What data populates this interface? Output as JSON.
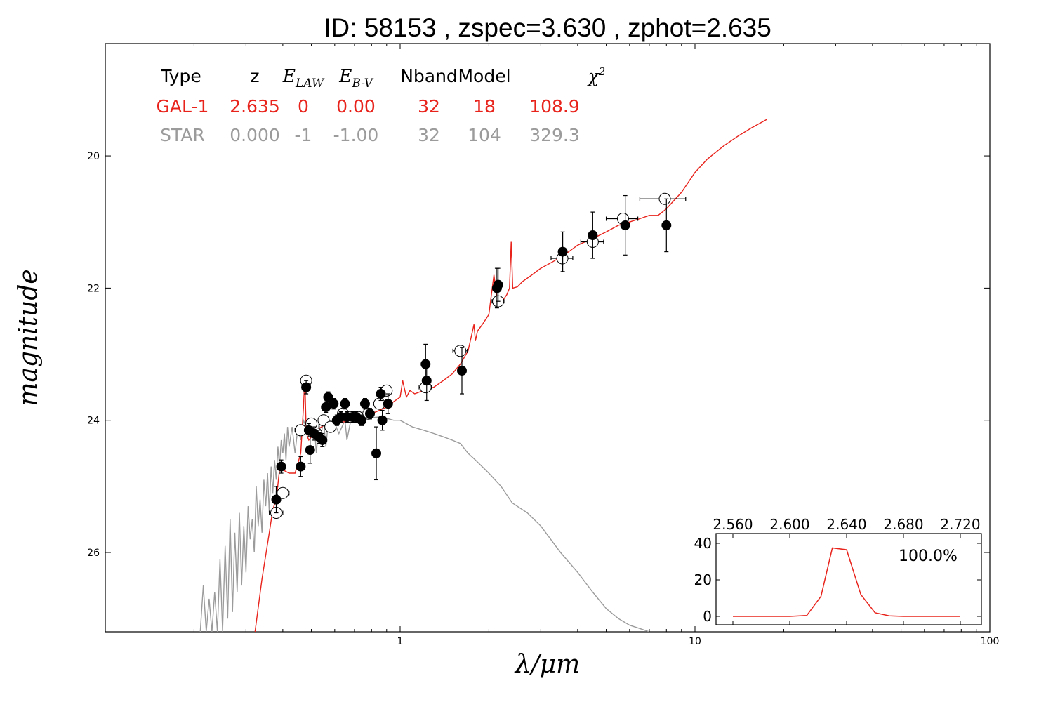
{
  "chart_data": [
    {
      "type": "line",
      "title": "ID:  58153 , zspec=3.630 , zphot=2.635",
      "xlabel": "λ/μm",
      "ylabel": "magnitude",
      "xscale": "log",
      "xlim": [
        0.1,
        100
      ],
      "ylim": [
        27.2,
        18.3
      ],
      "y_inverted": true,
      "grid": false,
      "xticks": [
        {
          "v": 1,
          "label": "1"
        },
        {
          "v": 10,
          "label": "10"
        },
        {
          "v": 100,
          "label": "100"
        }
      ],
      "yticks": [
        {
          "v": 20,
          "label": "20"
        },
        {
          "v": 22,
          "label": "22"
        },
        {
          "v": 24,
          "label": "24"
        },
        {
          "v": 26,
          "label": "26"
        }
      ],
      "fit_table": {
        "headers": [
          "Type",
          "z",
          "E_LAW",
          "E_B-V",
          "Nband",
          "Model",
          "χ²"
        ],
        "rows": [
          {
            "color": "#e8231c",
            "cells": [
              "GAL-1",
              "2.635",
              "0",
              "0.00",
              "32",
              "18",
              "108.9"
            ]
          },
          {
            "color": "#9b9b9b",
            "cells": [
              "STAR",
              "0.000",
              "-1",
              "-1.00",
              "32",
              "104",
              "329.3"
            ]
          }
        ]
      },
      "series": [
        {
          "color": "#e8231c",
          "style": "line",
          "x": [
            0.322,
            0.34,
            0.36,
            0.37,
            0.38,
            0.39,
            0.4,
            0.42,
            0.44,
            0.46,
            0.47,
            0.475,
            0.48,
            0.485,
            0.49,
            0.5,
            0.52,
            0.55,
            0.6,
            0.65,
            0.7,
            0.75,
            0.8,
            0.85,
            0.9,
            0.95,
            1.0,
            1.02,
            1.05,
            1.08,
            1.12,
            1.2,
            1.3,
            1.4,
            1.5,
            1.6,
            1.7,
            1.78,
            1.8,
            1.83,
            1.9,
            2.0,
            2.08,
            2.15,
            2.18,
            2.22,
            2.3,
            2.35,
            2.38,
            2.41,
            2.5,
            2.6,
            2.8,
            3.0,
            3.3,
            3.6,
            4.0,
            4.5,
            5.0,
            5.5,
            6.0,
            6.5,
            7.0,
            7.5,
            8.0,
            9.0,
            10.0,
            11.0,
            12.5,
            14.0,
            15.5,
            17.5
          ],
          "y": [
            27.2,
            26.4,
            25.7,
            25.35,
            25.2,
            24.75,
            24.75,
            24.8,
            24.8,
            24.5,
            23.8,
            23.35,
            24.15,
            24.25,
            24.3,
            24.25,
            24.15,
            24.08,
            24.05,
            24.02,
            24.0,
            23.95,
            23.9,
            23.85,
            23.8,
            23.72,
            23.65,
            23.4,
            23.65,
            23.55,
            23.6,
            23.55,
            23.5,
            23.4,
            23.3,
            23.15,
            22.95,
            22.55,
            22.8,
            22.65,
            22.55,
            22.4,
            21.8,
            22.3,
            22.15,
            22.2,
            22.1,
            22.0,
            21.3,
            22.0,
            21.98,
            21.9,
            21.8,
            21.7,
            21.6,
            21.5,
            21.35,
            21.25,
            21.15,
            21.05,
            21.0,
            20.95,
            20.9,
            20.9,
            20.8,
            20.55,
            20.25,
            20.05,
            19.85,
            19.7,
            19.58,
            19.45
          ]
        },
        {
          "color": "#9b9b9b",
          "style": "line",
          "x": [
            0.21,
            0.215,
            0.22,
            0.225,
            0.23,
            0.235,
            0.24,
            0.245,
            0.25,
            0.255,
            0.26,
            0.265,
            0.27,
            0.275,
            0.28,
            0.285,
            0.29,
            0.295,
            0.3,
            0.305,
            0.31,
            0.315,
            0.32,
            0.325,
            0.33,
            0.335,
            0.34,
            0.345,
            0.35,
            0.355,
            0.36,
            0.365,
            0.37,
            0.375,
            0.38,
            0.385,
            0.39,
            0.395,
            0.4,
            0.405,
            0.41,
            0.415,
            0.42,
            0.43,
            0.44,
            0.45,
            0.46,
            0.47,
            0.48,
            0.49,
            0.5,
            0.51,
            0.52,
            0.53,
            0.54,
            0.55,
            0.56,
            0.57,
            0.58,
            0.6,
            0.62,
            0.65,
            0.66,
            0.68,
            0.7,
            0.75,
            0.8,
            0.85,
            0.9,
            0.95,
            1.0,
            1.1,
            1.2,
            1.3,
            1.4,
            1.5,
            1.6,
            1.7,
            1.8,
            2.0,
            2.2,
            2.4,
            2.7,
            3.0,
            3.5,
            4.0,
            4.5,
            5.0,
            5.5,
            6.0,
            6.5,
            7.0
          ],
          "y": [
            27.2,
            26.5,
            27.2,
            26.7,
            27.2,
            26.6,
            27.2,
            26.1,
            27.2,
            25.9,
            27.0,
            25.5,
            26.9,
            25.7,
            26.6,
            25.4,
            26.5,
            25.6,
            26.3,
            25.3,
            25.8,
            25.5,
            26.0,
            25.0,
            25.6,
            25.2,
            25.7,
            24.9,
            25.3,
            24.8,
            25.4,
            24.7,
            25.1,
            24.6,
            24.9,
            24.4,
            24.7,
            24.3,
            24.5,
            24.2,
            24.6,
            24.1,
            24.4,
            24.1,
            24.5,
            24.1,
            24.3,
            24.0,
            24.1,
            24.0,
            24.2,
            24.0,
            24.5,
            24.05,
            24.2,
            24.0,
            24.4,
            24.05,
            24.0,
            24.05,
            24.2,
            24.0,
            24.3,
            24.0,
            24.0,
            23.98,
            23.96,
            23.95,
            23.97,
            24.0,
            24.0,
            24.1,
            24.15,
            24.2,
            24.25,
            24.3,
            24.35,
            24.5,
            24.6,
            24.8,
            25.0,
            25.25,
            25.4,
            25.6,
            26.0,
            26.3,
            26.6,
            26.85,
            27.0,
            27.1,
            27.15,
            27.2
          ]
        }
      ],
      "obs_open": [
        {
          "x": 0.38,
          "y": 25.4,
          "dx": 0.02
        },
        {
          "x": 0.4,
          "y": 25.1,
          "dx": 0.02
        },
        {
          "x": 0.46,
          "y": 24.15,
          "dx": 0.02
        },
        {
          "x": 0.48,
          "y": 23.4,
          "dx": 0.01
        },
        {
          "x": 0.5,
          "y": 24.05,
          "dx": 0.02
        },
        {
          "x": 0.52,
          "y": 24.2,
          "dx": 0.02
        },
        {
          "x": 0.55,
          "y": 24.0,
          "dx": 0.02
        },
        {
          "x": 0.58,
          "y": 24.1,
          "dx": 0.02
        },
        {
          "x": 0.64,
          "y": 23.9,
          "dx": 0.02
        },
        {
          "x": 0.68,
          "y": 23.95,
          "dx": 0.02
        },
        {
          "x": 0.72,
          "y": 23.95,
          "dx": 0.02
        },
        {
          "x": 0.78,
          "y": 23.9,
          "dx": 0.02
        },
        {
          "x": 0.85,
          "y": 23.75,
          "dx": 0.02
        },
        {
          "x": 0.9,
          "y": 23.55,
          "dx": 0.03
        },
        {
          "x": 1.22,
          "y": 23.5,
          "dx": 0.06
        },
        {
          "x": 1.6,
          "y": 22.95,
          "dx": 0.09
        },
        {
          "x": 2.15,
          "y": 22.2,
          "dx": 0.1
        },
        {
          "x": 3.55,
          "y": 21.55,
          "dx": 0.3
        },
        {
          "x": 4.5,
          "y": 21.3,
          "dx": 0.4
        },
        {
          "x": 5.7,
          "y": 20.95,
          "dx": 0.7
        },
        {
          "x": 7.9,
          "y": 20.65,
          "dx": 1.4
        }
      ],
      "obs_filled": [
        {
          "x": 0.38,
          "y": 25.2,
          "ey": 0.2
        },
        {
          "x": 0.395,
          "y": 24.7,
          "ey": 0.1
        },
        {
          "x": 0.46,
          "y": 24.7,
          "ey": 0.15
        },
        {
          "x": 0.48,
          "y": 23.5,
          "ey": 0.1
        },
        {
          "x": 0.49,
          "y": 24.15,
          "ey": 0.1
        },
        {
          "x": 0.495,
          "y": 24.45,
          "ey": 0.2
        },
        {
          "x": 0.51,
          "y": 24.2,
          "ey": 0.1
        },
        {
          "x": 0.53,
          "y": 24.25,
          "ey": 0.1
        },
        {
          "x": 0.545,
          "y": 24.3,
          "ey": 0.1
        },
        {
          "x": 0.56,
          "y": 23.8,
          "ey": 0.08
        },
        {
          "x": 0.57,
          "y": 23.65,
          "ey": 0.08
        },
        {
          "x": 0.595,
          "y": 23.75,
          "ey": 0.08
        },
        {
          "x": 0.61,
          "y": 24.0,
          "ey": 0.08
        },
        {
          "x": 0.63,
          "y": 23.95,
          "ey": 0.08
        },
        {
          "x": 0.65,
          "y": 23.75,
          "ey": 0.08
        },
        {
          "x": 0.66,
          "y": 23.95,
          "ey": 0.08
        },
        {
          "x": 0.69,
          "y": 23.95,
          "ey": 0.08
        },
        {
          "x": 0.71,
          "y": 23.95,
          "ey": 0.08
        },
        {
          "x": 0.74,
          "y": 24.0,
          "ey": 0.08
        },
        {
          "x": 0.76,
          "y": 23.75,
          "ey": 0.08
        },
        {
          "x": 0.79,
          "y": 23.9,
          "ey": 0.08
        },
        {
          "x": 0.83,
          "y": 24.5,
          "ey": 0.4
        },
        {
          "x": 0.86,
          "y": 23.6,
          "ey": 0.1
        },
        {
          "x": 0.87,
          "y": 24.0,
          "ey": 0.15
        },
        {
          "x": 0.91,
          "y": 23.75,
          "ey": 0.15
        },
        {
          "x": 1.22,
          "y": 23.15,
          "ey": 0.3
        },
        {
          "x": 1.23,
          "y": 23.4,
          "ey": 0.3
        },
        {
          "x": 1.62,
          "y": 23.25,
          "ey": 0.35
        },
        {
          "x": 2.13,
          "y": 22.0,
          "ey": 0.3
        },
        {
          "x": 2.15,
          "y": 21.95,
          "ey": 0.25
        },
        {
          "x": 3.56,
          "y": 21.45,
          "ey": 0.3
        },
        {
          "x": 4.5,
          "y": 21.2,
          "ey": 0.35
        },
        {
          "x": 5.8,
          "y": 21.05,
          "ey": 0.45
        },
        {
          "x": 8.0,
          "y": 21.05,
          "ey": 0.4
        }
      ]
    },
    {
      "type": "line",
      "title": "",
      "annotation": "100.0%",
      "xlim": [
        2.55,
        2.725
      ],
      "ylim": [
        -3,
        45
      ],
      "xticks": [
        "2.560",
        "2.600",
        "2.640",
        "2.680",
        "2.720"
      ],
      "yticks": [
        "0",
        "20",
        "40"
      ],
      "series": [
        {
          "color": "#e8231c",
          "x": [
            2.56,
            2.6,
            2.612,
            2.622,
            2.63,
            2.64,
            2.65,
            2.66,
            2.67,
            2.68,
            2.72
          ],
          "y": [
            0,
            0,
            0.5,
            11,
            37.5,
            36.5,
            12,
            2,
            0.3,
            0,
            0
          ]
        }
      ]
    }
  ]
}
